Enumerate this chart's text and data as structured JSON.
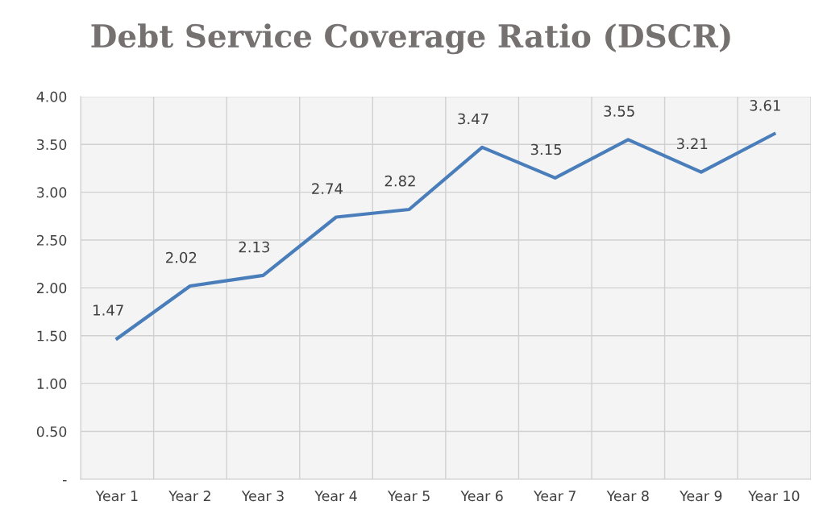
{
  "chart_data": {
    "type": "line",
    "title": "Debt Service Coverage Ratio (DSCR)",
    "categories": [
      "Year 1",
      "Year 2",
      "Year 3",
      "Year 4",
      "Year 5",
      "Year 6",
      "Year 7",
      "Year 8",
      "Year 9",
      "Year 10"
    ],
    "series": [
      {
        "color": "#4a7ebb",
        "values": [
          1.47,
          2.02,
          2.13,
          2.74,
          2.82,
          3.47,
          3.15,
          3.55,
          3.21,
          3.61
        ]
      }
    ],
    "ylim": [
      0,
      4
    ],
    "yticks": [
      {
        "value": 0,
        "label": "-"
      },
      {
        "value": 0.5,
        "label": "0.50"
      },
      {
        "value": 1,
        "label": "1.00"
      },
      {
        "value": 1.5,
        "label": "1.50"
      },
      {
        "value": 2,
        "label": "2.00"
      },
      {
        "value": 2.5,
        "label": "2.50"
      },
      {
        "value": 3,
        "label": "3.00"
      },
      {
        "value": 3.5,
        "label": "3.50"
      },
      {
        "value": 4,
        "label": "4.00"
      }
    ],
    "grid": true,
    "data_labels": true,
    "marker": "none",
    "line_style": "solid",
    "legend": false
  }
}
